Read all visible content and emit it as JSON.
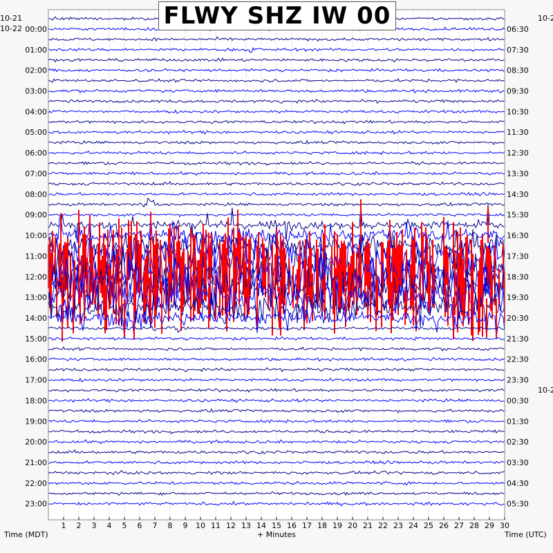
{
  "title": "FLWY SHZ IW 00",
  "left_date_top": "10-21",
  "left_date_main": "10-22",
  "right_date_top": "10-2",
  "right_date_mid": "10-2",
  "x_label_left": "Time (MDT)",
  "x_label_center": "+ Minutes",
  "x_label_right": "Time (UTC)",
  "colors": {
    "trace_a": "#00008b",
    "trace_b": "#0000ff",
    "clip": "#ff0000",
    "grid": "#9a9a9a",
    "text": "#000000"
  },
  "chart_data": {
    "type": "helicorder",
    "title": "FLWY SHZ IW 00",
    "xlabel": "+ Minutes",
    "xlim": [
      0,
      30
    ],
    "x_ticks": [
      1,
      2,
      3,
      4,
      5,
      6,
      7,
      8,
      9,
      10,
      11,
      12,
      13,
      14,
      15,
      16,
      17,
      18,
      19,
      20,
      21,
      22,
      23,
      24,
      25,
      26,
      27,
      28,
      29,
      30
    ],
    "left_axis": [
      "00:00",
      "01:00",
      "02:00",
      "03:00",
      "04:00",
      "05:00",
      "06:00",
      "07:00",
      "08:00",
      "09:00",
      "10:00",
      "11:00",
      "12:00",
      "13:00",
      "14:00",
      "15:00",
      "16:00",
      "17:00",
      "18:00",
      "19:00",
      "20:00",
      "21:00",
      "22:00",
      "23:00"
    ],
    "right_axis": [
      "06:30",
      "07:30",
      "08:30",
      "09:30",
      "10:30",
      "11:30",
      "12:30",
      "13:30",
      "14:30",
      "15:30",
      "16:30",
      "17:30",
      "18:30",
      "19:30",
      "20:30",
      "21:30",
      "22:30",
      "23:30",
      "00:30",
      "01:30",
      "02:30",
      "03:30",
      "04:30",
      "05:30"
    ],
    "rows_per_hour": 2,
    "grid": true
  }
}
